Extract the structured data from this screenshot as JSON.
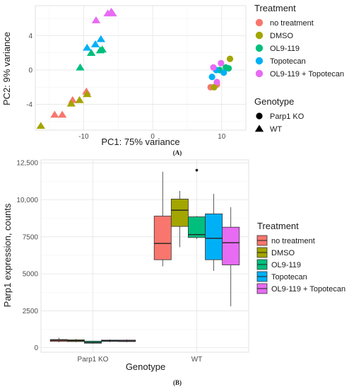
{
  "panels": [
    {
      "letter": "(A)",
      "chart_data": {
        "type": "scatter",
        "title": "",
        "xlabel": "PC1: 75% variance",
        "ylabel": "PC2: 9% variance",
        "xlim": [
          -17,
          13.5
        ],
        "ylim": [
          -7,
          7.5
        ],
        "x_ticks": [
          -10,
          0,
          10
        ],
        "y_ticks": [
          -4,
          0,
          4
        ],
        "grid": true,
        "legend_position": "right",
        "legend": {
          "color_title": "Treatment",
          "shape_title": "Genotype",
          "shapes": [
            {
              "name": "Parp1 KO",
              "marker": "circle"
            },
            {
              "name": "WT",
              "marker": "triangle"
            }
          ]
        },
        "series": [
          {
            "name": "no treatment",
            "color": "#F8766D",
            "points": [
              {
                "x": -14.2,
                "y": -5.2,
                "genotype": "WT"
              },
              {
                "x": -13.1,
                "y": -5.2,
                "genotype": "WT"
              },
              {
                "x": -11.6,
                "y": -3.5,
                "genotype": "WT"
              },
              {
                "x": -9.6,
                "y": -2.5,
                "genotype": "WT"
              },
              {
                "x": 8.4,
                "y": -2.0,
                "genotype": "Parp1 KO"
              },
              {
                "x": 9.3,
                "y": -1.7,
                "genotype": "Parp1 KO"
              }
            ]
          },
          {
            "name": "DMSO",
            "color": "#A3A500",
            "points": [
              {
                "x": -16.2,
                "y": -6.5,
                "genotype": "WT"
              },
              {
                "x": -11.8,
                "y": -3.9,
                "genotype": "WT"
              },
              {
                "x": -10.6,
                "y": -3.5,
                "genotype": "WT"
              },
              {
                "x": -9.5,
                "y": -2.8,
                "genotype": "WT"
              },
              {
                "x": 8.9,
                "y": -2.0,
                "genotype": "Parp1 KO"
              },
              {
                "x": 11.2,
                "y": 1.3,
                "genotype": "Parp1 KO"
              }
            ]
          },
          {
            "name": "OL9-119",
            "color": "#00BF7D",
            "points": [
              {
                "x": -10.5,
                "y": 0.3,
                "genotype": "WT"
              },
              {
                "x": -8.9,
                "y": 2.0,
                "genotype": "WT"
              },
              {
                "x": -7.6,
                "y": 2.3,
                "genotype": "WT"
              },
              {
                "x": -7.3,
                "y": 2.4,
                "genotype": "WT"
              },
              {
                "x": 9.7,
                "y": 0.0,
                "genotype": "Parp1 KO"
              },
              {
                "x": 10.6,
                "y": 0.3,
                "genotype": "Parp1 KO"
              },
              {
                "x": 11.0,
                "y": 0.2,
                "genotype": "Parp1 KO"
              }
            ]
          },
          {
            "name": "Topotecan",
            "color": "#00B0F6",
            "points": [
              {
                "x": -9.5,
                "y": 2.6,
                "genotype": "WT"
              },
              {
                "x": -8.3,
                "y": 3.0,
                "genotype": "WT"
              },
              {
                "x": -7.5,
                "y": 3.6,
                "genotype": "WT"
              },
              {
                "x": 8.6,
                "y": -0.8,
                "genotype": "Parp1 KO"
              },
              {
                "x": 9.2,
                "y": 0.0,
                "genotype": "Parp1 KO"
              },
              {
                "x": 10.3,
                "y": -0.3,
                "genotype": "Parp1 KO"
              }
            ]
          },
          {
            "name": "OL9-119 + Topotecan",
            "color": "#E76BF3",
            "points": [
              {
                "x": -8.2,
                "y": 5.8,
                "genotype": "WT"
              },
              {
                "x": -6.5,
                "y": 6.6,
                "genotype": "WT"
              },
              {
                "x": -6.0,
                "y": 6.8,
                "genotype": "WT"
              },
              {
                "x": -5.8,
                "y": 6.6,
                "genotype": "WT"
              },
              {
                "x": 8.8,
                "y": 0.3,
                "genotype": "Parp1 KO"
              },
              {
                "x": 9.3,
                "y": -1.4,
                "genotype": "Parp1 KO"
              },
              {
                "x": 9.9,
                "y": 0.8,
                "genotype": "Parp1 KO"
              }
            ]
          }
        ]
      }
    },
    {
      "letter": "(B)",
      "chart_data": {
        "type": "box",
        "title": "",
        "xlabel": "Genotype",
        "ylabel": "Parp1 expression, counts",
        "categories": [
          "Parp1 KO",
          "WT"
        ],
        "ylim": [
          -300,
          12700
        ],
        "y_ticks": [
          0,
          2500,
          5000,
          7500,
          10000,
          12500
        ],
        "y_tick_labels": [
          "0",
          "2500",
          "5000",
          "7500",
          "10,000",
          "12,500"
        ],
        "grid": true,
        "legend_position": "right",
        "legend_title": "Treatment",
        "series": [
          {
            "name": "no treatment",
            "color": "#F8766D",
            "boxes": [
              {
                "category": "Parp1 KO",
                "min": 370,
                "q1": 430,
                "median": 510,
                "q3": 560,
                "max": 680,
                "outliers": []
              },
              {
                "category": "WT",
                "min": 5500,
                "q1": 5950,
                "median": 7050,
                "q3": 8900,
                "max": 11900,
                "outliers": []
              }
            ]
          },
          {
            "name": "DMSO",
            "color": "#A3A500",
            "boxes": [
              {
                "category": "Parp1 KO",
                "min": 380,
                "q1": 420,
                "median": 480,
                "q3": 540,
                "max": 600,
                "outliers": []
              },
              {
                "category": "WT",
                "min": 6800,
                "q1": 8200,
                "median": 9300,
                "q3": 10050,
                "max": 10600,
                "outliers": []
              }
            ]
          },
          {
            "name": "OL9-119",
            "color": "#00BF7D",
            "boxes": [
              {
                "category": "Parp1 KO",
                "min": 280,
                "q1": 310,
                "median": 360,
                "q3": 450,
                "max": 470,
                "outliers": []
              },
              {
                "category": "WT",
                "min": 7350,
                "q1": 7450,
                "median": 7650,
                "q3": 8850,
                "max": 8900,
                "outliers": [
                  12000
                ]
              }
            ]
          },
          {
            "name": "Topotecan",
            "color": "#00B0F6",
            "boxes": [
              {
                "category": "Parp1 KO",
                "min": 380,
                "q1": 430,
                "median": 480,
                "q3": 520,
                "max": 560,
                "outliers": []
              },
              {
                "category": "WT",
                "min": 5200,
                "q1": 5950,
                "median": 7400,
                "q3": 9050,
                "max": 10400,
                "outliers": []
              }
            ]
          },
          {
            "name": "OL9-119 + Topotecan",
            "color": "#E76BF3",
            "boxes": [
              {
                "category": "Parp1 KO",
                "min": 380,
                "q1": 420,
                "median": 470,
                "q3": 520,
                "max": 560,
                "outliers": []
              },
              {
                "category": "WT",
                "min": 2800,
                "q1": 5600,
                "median": 7100,
                "q3": 8150,
                "max": 9500,
                "outliers": []
              }
            ]
          }
        ]
      }
    }
  ]
}
